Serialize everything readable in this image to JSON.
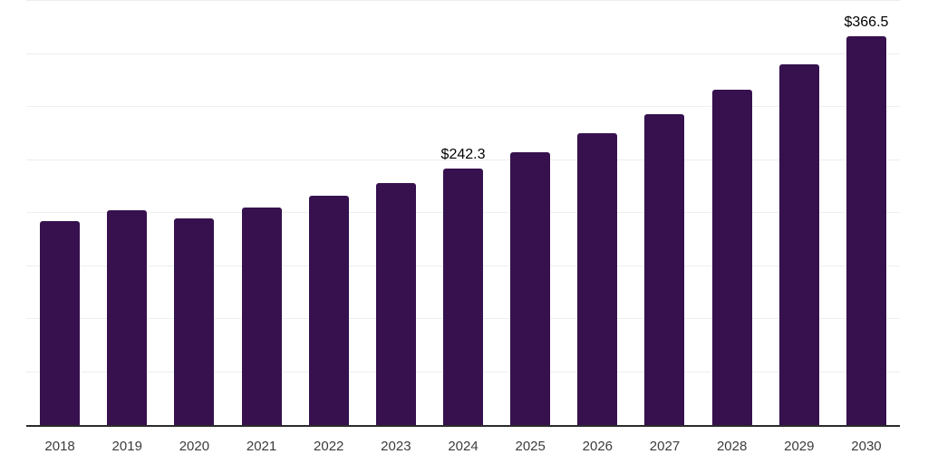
{
  "chart_data": {
    "type": "bar",
    "title": "",
    "xlabel": "",
    "ylabel": "",
    "categories": [
      "2018",
      "2019",
      "2020",
      "2021",
      "2022",
      "2023",
      "2024",
      "2025",
      "2026",
      "2027",
      "2028",
      "2029",
      "2030"
    ],
    "values": [
      192.1,
      203.0,
      194.5,
      205.2,
      215.9,
      228.1,
      242.3,
      257.4,
      274.9,
      293.5,
      316.2,
      339.8,
      366.5
    ],
    "value_labels": [
      "",
      "",
      "",
      "",
      "",
      "",
      "$242.3",
      "",
      "",
      "",
      "",
      "",
      "$366.5"
    ],
    "ylim": [
      0,
      400
    ],
    "gridline_step": 50,
    "grid": true,
    "legend_position": "none",
    "y_tick_labels_shown": false,
    "colors": {
      "bar": "#36114e",
      "axis_line": "#2b2b2b",
      "gridline": "#eeeeee",
      "tick_label": "#3c3c3c",
      "data_label": "#000000",
      "background": "#ffffff"
    }
  }
}
